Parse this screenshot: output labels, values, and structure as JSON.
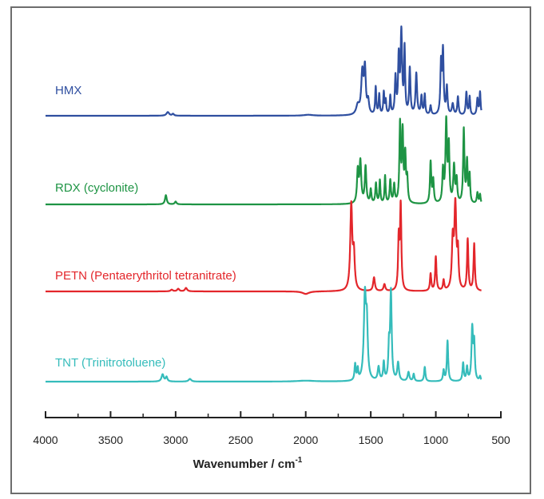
{
  "chart_data": {
    "type": "line",
    "title": "",
    "xlabel": "Wavenumber / cm",
    "xlabel_superscript": "-1",
    "xlim": [
      4000,
      500
    ],
    "x_reversed": true,
    "xticks": [
      "4000",
      "3500",
      "3000",
      "2500",
      "2000",
      "1500",
      "1000",
      "500"
    ],
    "y_axis_shown": false,
    "grid": false,
    "legend": "inline labels left of each trace",
    "series": [
      {
        "name": "HMX",
        "color": "#2f4fa0",
        "x_range": [
          4000,
          650
        ],
        "baseline": 0,
        "features": [
          [
            3060,
            4,
            12
          ],
          [
            3020,
            2,
            8
          ],
          [
            1980,
            1,
            40
          ],
          [
            1600,
            10,
            14
          ],
          [
            1565,
            45,
            10
          ],
          [
            1545,
            48,
            8
          ],
          [
            1520,
            14,
            8
          ],
          [
            1462,
            30,
            5
          ],
          [
            1435,
            22,
            5
          ],
          [
            1400,
            24,
            5
          ],
          [
            1385,
            15,
            5
          ],
          [
            1350,
            20,
            5
          ],
          [
            1310,
            40,
            6
          ],
          [
            1285,
            60,
            6
          ],
          [
            1265,
            88,
            7
          ],
          [
            1240,
            70,
            5
          ],
          [
            1200,
            50,
            6
          ],
          [
            1150,
            45,
            7
          ],
          [
            1110,
            20,
            6
          ],
          [
            1085,
            22,
            5
          ],
          [
            1040,
            10,
            6
          ],
          [
            960,
            55,
            6
          ],
          [
            945,
            68,
            6
          ],
          [
            915,
            30,
            6
          ],
          [
            870,
            12,
            8
          ],
          [
            830,
            20,
            6
          ],
          [
            765,
            25,
            6
          ],
          [
            740,
            20,
            5
          ],
          [
            680,
            18,
            6
          ],
          [
            660,
            25,
            5
          ]
        ]
      },
      {
        "name": "RDX (cyclonite)",
        "color": "#1e9444",
        "x_range": [
          4000,
          650
        ],
        "baseline": 0,
        "features": [
          [
            3075,
            10,
            8
          ],
          [
            3000,
            3,
            8
          ],
          [
            1600,
            35,
            7
          ],
          [
            1580,
            45,
            8
          ],
          [
            1540,
            40,
            7
          ],
          [
            1500,
            15,
            6
          ],
          [
            1460,
            22,
            6
          ],
          [
            1430,
            25,
            5
          ],
          [
            1390,
            30,
            5
          ],
          [
            1350,
            25,
            6
          ],
          [
            1320,
            20,
            6
          ],
          [
            1275,
            85,
            6
          ],
          [
            1255,
            75,
            6
          ],
          [
            1235,
            50,
            6
          ],
          [
            1220,
            25,
            6
          ],
          [
            1040,
            45,
            6
          ],
          [
            1020,
            25,
            6
          ],
          [
            945,
            35,
            6
          ],
          [
            920,
            88,
            7
          ],
          [
            900,
            60,
            6
          ],
          [
            860,
            40,
            7
          ],
          [
            840,
            25,
            6
          ],
          [
            785,
            80,
            6
          ],
          [
            760,
            45,
            6
          ],
          [
            740,
            30,
            5
          ],
          [
            680,
            12,
            6
          ],
          [
            660,
            10,
            5
          ]
        ]
      },
      {
        "name": "PETN (Pentaerythritol tetranitrate)",
        "color": "#e3262b",
        "x_range": [
          4000,
          650
        ],
        "baseline": 0,
        "features": [
          [
            3030,
            2,
            10
          ],
          [
            2980,
            3,
            10
          ],
          [
            2920,
            4,
            10
          ],
          [
            2000,
            -3,
            30
          ],
          [
            1650,
            100,
            9
          ],
          [
            1630,
            40,
            8
          ],
          [
            1475,
            16,
            8
          ],
          [
            1395,
            8,
            8
          ],
          [
            1285,
            60,
            6
          ],
          [
            1270,
            98,
            6
          ],
          [
            1040,
            20,
            6
          ],
          [
            1000,
            40,
            6
          ],
          [
            940,
            12,
            6
          ],
          [
            870,
            55,
            8
          ],
          [
            850,
            98,
            9
          ],
          [
            830,
            40,
            6
          ],
          [
            755,
            60,
            6
          ],
          [
            705,
            55,
            6
          ]
        ]
      },
      {
        "name": "TNT (Trinitrotoluene)",
        "color": "#35bcbb",
        "x_range": [
          4000,
          650
        ],
        "baseline": 0,
        "features": [
          [
            3100,
            8,
            10
          ],
          [
            3070,
            5,
            8
          ],
          [
            2890,
            3,
            12
          ],
          [
            2000,
            1,
            80
          ],
          [
            1620,
            18,
            6
          ],
          [
            1600,
            12,
            5
          ],
          [
            1545,
            92,
            10
          ],
          [
            1530,
            55,
            8
          ],
          [
            1440,
            15,
            8
          ],
          [
            1400,
            20,
            6
          ],
          [
            1360,
            35,
            6
          ],
          [
            1345,
            98,
            7
          ],
          [
            1290,
            20,
            8
          ],
          [
            1210,
            10,
            8
          ],
          [
            1170,
            8,
            6
          ],
          [
            1085,
            16,
            6
          ],
          [
            940,
            12,
            6
          ],
          [
            910,
            45,
            6
          ],
          [
            790,
            20,
            6
          ],
          [
            760,
            15,
            6
          ],
          [
            720,
            58,
            7
          ],
          [
            705,
            40,
            6
          ],
          [
            660,
            5,
            6
          ]
        ]
      }
    ]
  }
}
